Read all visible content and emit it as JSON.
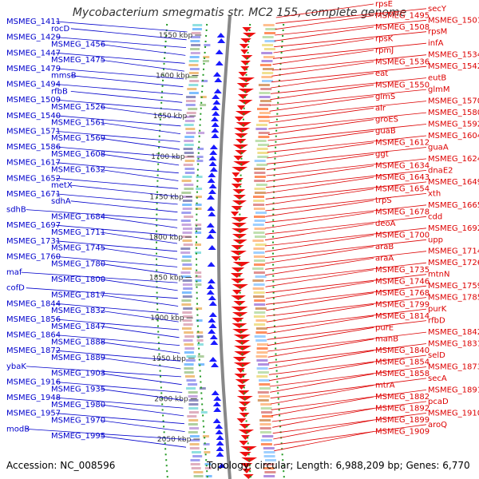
{
  "title": "Mycobacterium smegmatis str. MC2 155, complete genome",
  "accession": "Accession: NC_008596",
  "stats": "Topology: circular; Length: 6,988,209 bp; Genes: 6,770",
  "colors": {
    "left_labels": "#0000cc",
    "right_labels": "#dd0000",
    "left_arrows": "#1a1aff",
    "right_arrows": "#ee1111",
    "backbone": "#888888",
    "dots": "#229922",
    "ticks": "#444444"
  },
  "ticks": [
    "1550 kbp",
    "1600 kbp",
    "1650 kbp",
    "1700 kbp",
    "1750 kbp",
    "1800 kbp",
    "1850 kbp",
    "1900 kbp",
    "1950 kbp",
    "2000 kbp",
    "2050 kbp"
  ],
  "left_labels": [
    "MSMEG_1411",
    "rocD",
    "MSMEG_1429",
    "MSMEG_1456",
    "MSMEG_1447",
    "MSMEG_1475",
    "MSMEG_1479",
    "mmsB",
    "MSMEG_1494",
    "rfbB",
    "MSMEG_1509",
    "MSMEG_1526",
    "MSMEG_1540",
    "MSMEG_1561",
    "MSMEG_1571",
    "MSMEG_1569",
    "MSMEG_1586",
    "MSMEG_1608",
    "MSMEG_1617",
    "MSMEG_1632",
    "MSMEG_1652",
    "metX",
    "MSMEG_1671",
    "sdhA",
    "sdhB",
    "MSMEG_1684",
    "MSMEG_1697",
    "MSMEG_1711",
    "MSMEG_1731",
    "MSMEG_1745",
    "MSMEG_1760",
    "MSMEG_1780",
    "maf",
    "MSMEG_1800",
    "cofD",
    "MSMEG_1817",
    "MSMEG_1844",
    "MSMEG_1832",
    "MSMEG_1856",
    "MSMEG_1847",
    "MSMEG_1864",
    "MSMEG_1888",
    "MSMEG_1872",
    "MSMEG_1889",
    "ybaK",
    "MSMEG_1903",
    "MSMEG_1916",
    "MSMEG_1935",
    "MSMEG_1948",
    "MSMEG_1980",
    "MSMEG_1957",
    "MSMEG_1970",
    "modB",
    "MSMEG_1995"
  ],
  "right_labels": [
    "rpsE",
    "secY",
    "MSMEG_1495",
    "MSMEG_1501",
    "MSMEG_1508",
    "rpsM",
    "rpsK",
    "infA",
    "rpmJ",
    "MSMEG_1534",
    "MSMEG_1536",
    "MSMEG_1542",
    "eat",
    "eutB",
    "MSMEG_1550",
    "glmM",
    "glmS",
    "MSMEG_1570",
    "alr",
    "MSMEG_1580",
    "groES",
    "MSMEG_1592",
    "guaB",
    "MSMEG_1604",
    "MSMEG_1612",
    "guaA",
    "ggt",
    "MSMEG_1624",
    "MSMEG_1634",
    "dnaE2",
    "MSMEG_1643",
    "MSMEG_1649",
    "MSMEG_1654",
    "xth",
    "trpS",
    "MSMEG_1665",
    "MSMEG_1678",
    "cdd",
    "deoA",
    "MSMEG_1692",
    "MSMEG_1700",
    "upp",
    "araB",
    "MSMEG_1714",
    "araA",
    "MSMEG_1726",
    "MSMEG_1735",
    "mtnN",
    "MSMEG_1746",
    "MSMEG_1759",
    "MSMEG_1768",
    "MSMEG_1785",
    "MSMEG_1799",
    "purK",
    "MSMEG_1814",
    "rfbD",
    "purE",
    "MSMEG_1842",
    "manB",
    "MSMEG_1831",
    "MSMEG_1840",
    "selD",
    "MSMEG_1854",
    "MSMEG_1873",
    "MSMEG_1858",
    "secA",
    "mtrA",
    "MSMEG_1891",
    "MSMEG_1882",
    "pcaD",
    "MSMEG_1892",
    "MSMEG_1910",
    "MSMEG_1899",
    "aroQ",
    "MSMEG_1909"
  ]
}
